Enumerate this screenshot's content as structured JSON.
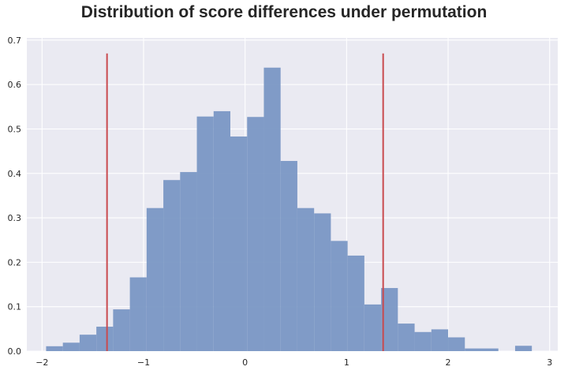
{
  "chart_data": {
    "type": "bar",
    "title": "Distribution of score differences under permutation",
    "xlabel": "",
    "ylabel": "",
    "xlim": [
      -2.15,
      3.08
    ],
    "ylim": [
      0,
      0.705
    ],
    "xticks": [
      -2,
      -1,
      0,
      1,
      2,
      3
    ],
    "xtick_labels": [
      "−2",
      "−1",
      "0",
      "1",
      "2",
      "3"
    ],
    "yticks": [
      0.0,
      0.1,
      0.2,
      0.3,
      0.4,
      0.5,
      0.6,
      0.7
    ],
    "ytick_labels": [
      "0.0",
      "0.1",
      "0.2",
      "0.3",
      "0.4",
      "0.5",
      "0.6",
      "0.7"
    ],
    "grid": true,
    "bar_color": "#7a97c4",
    "line_color": "#c94a4f",
    "background_color": "#eaeaf2",
    "bin_edges": [
      -1.96,
      -1.795,
      -1.63,
      -1.465,
      -1.3,
      -1.135,
      -0.97,
      -0.805,
      -0.64,
      -0.475,
      -0.31,
      -0.145,
      0.02,
      0.185,
      0.35,
      0.515,
      0.68,
      0.845,
      1.01,
      1.175,
      1.34,
      1.505,
      1.67,
      1.835,
      2.0,
      2.165,
      2.33,
      2.495,
      2.66,
      2.825
    ],
    "values": [
      0.011,
      0.019,
      0.037,
      0.055,
      0.094,
      0.166,
      0.322,
      0.385,
      0.403,
      0.528,
      0.54,
      0.483,
      0.527,
      0.638,
      0.428,
      0.322,
      0.31,
      0.248,
      0.215,
      0.105,
      0.142,
      0.062,
      0.043,
      0.049,
      0.031,
      0.006,
      0.006,
      0.0,
      0.012
    ],
    "vlines": [
      {
        "x": -1.36,
        "ymax": 0.67
      },
      {
        "x": 1.36,
        "ymax": 0.67
      }
    ]
  }
}
